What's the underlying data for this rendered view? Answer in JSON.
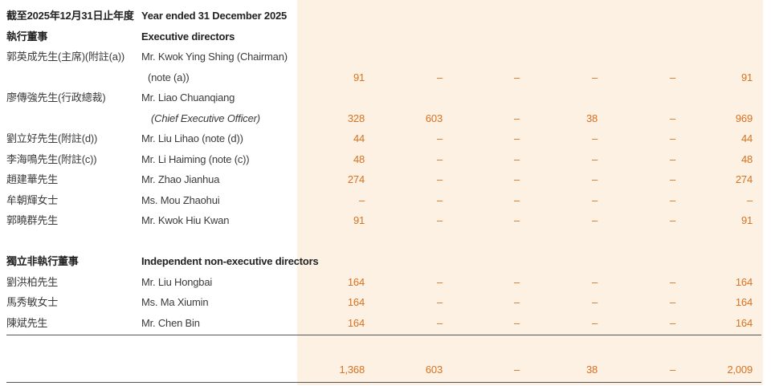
{
  "header": {
    "zh": "截至2025年12月31日止年度",
    "en": "Year ended 31 December 2025"
  },
  "sections": {
    "executive": {
      "zh": "執行董事",
      "en": "Executive directors"
    },
    "independent": {
      "zh": "獨立非執行董事",
      "en": "Independent non-executive directors"
    }
  },
  "rows": [
    {
      "zh": "郭英成先生(主席)(附註(a))",
      "en": "Mr. Kwok Ying Shing (Chairman)",
      "en2": "(note (a))",
      "values": [
        "91",
        "–",
        "–",
        "–",
        "–",
        "91"
      ]
    },
    {
      "zh": "廖傳強先生(行政總裁)",
      "en": "Mr. Liao Chuanqiang",
      "en2": "(Chief Executive Officer)",
      "values": [
        "328",
        "603",
        "–",
        "38",
        "–",
        "969"
      ]
    },
    {
      "zh": "劉立好先生(附註(d))",
      "en": "Mr. Liu Lihao (note (d))",
      "values": [
        "44",
        "–",
        "–",
        "–",
        "–",
        "44"
      ]
    },
    {
      "zh": "李海鳴先生(附註(c))",
      "en": "Mr. Li Haiming (note (c))",
      "values": [
        "48",
        "–",
        "–",
        "–",
        "–",
        "48"
      ]
    },
    {
      "zh": "趙建華先生",
      "en": "Mr. Zhao Jianhua",
      "values": [
        "274",
        "–",
        "–",
        "–",
        "–",
        "274"
      ]
    },
    {
      "zh": "牟朝輝女士",
      "en": "Ms. Mou Zhaohui",
      "values": [
        "–",
        "–",
        "–",
        "–",
        "–",
        "–"
      ]
    },
    {
      "zh": "郭曉群先生",
      "en": "Mr. Kwok Hiu Kwan",
      "values": [
        "91",
        "–",
        "–",
        "–",
        "–",
        "91"
      ]
    },
    {
      "zh": "劉洪柏先生",
      "en": "Mr. Liu Hongbai",
      "values": [
        "164",
        "–",
        "–",
        "–",
        "–",
        "164"
      ]
    },
    {
      "zh": "馬秀敏女士",
      "en": "Ms. Ma Xiumin",
      "values": [
        "164",
        "–",
        "–",
        "–",
        "–",
        "164"
      ]
    },
    {
      "zh": "陳斌先生",
      "en": "Mr. Chen Bin",
      "values": [
        "164",
        "–",
        "–",
        "–",
        "–",
        "164"
      ]
    }
  ],
  "totals": [
    "1,368",
    "603",
    "–",
    "38",
    "–",
    "2,009"
  ],
  "colors": {
    "value": "#d9711f",
    "shade": "#fdf1e4"
  }
}
